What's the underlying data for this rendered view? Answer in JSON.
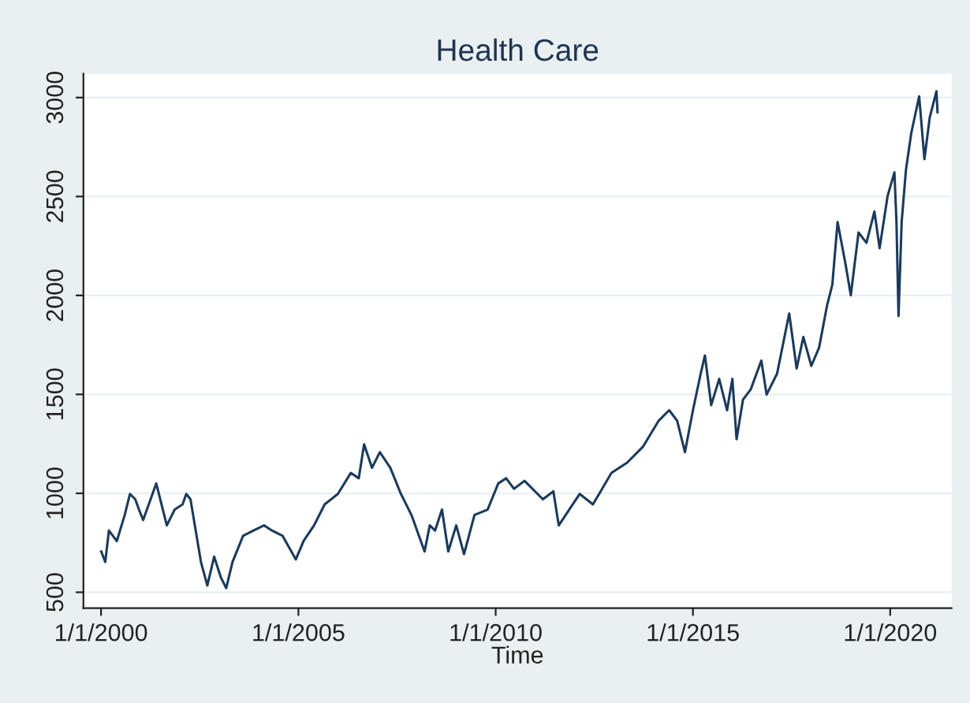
{
  "chart_data": {
    "type": "line",
    "title": "Health Care",
    "xlabel": "Time",
    "x": [
      "2000-01-03",
      "2000-02-09",
      "2000-03-14",
      "2000-05-26",
      "2000-08-07",
      "2000-09-25",
      "2000-11-13",
      "2000-12-17",
      "2001-01-25",
      "2001-05-26",
      "2001-09-01",
      "2001-11-13",
      "2002-01-25",
      "2002-02-28",
      "2002-04-08",
      "2002-07-14",
      "2002-09-11",
      "2002-11-13",
      "2003-01-15",
      "2003-03-05",
      "2003-05-02",
      "2003-08-08",
      "2003-11-13",
      "2004-02-18",
      "2004-05-01",
      "2004-08-08",
      "2004-12-08",
      "2005-02-18",
      "2005-05-26",
      "2005-09-01",
      "2006-01-01",
      "2006-05-01",
      "2006-07-14",
      "2006-09-01",
      "2006-11-13",
      "2007-01-25",
      "2007-05-02",
      "2007-08-08",
      "2007-11-13",
      "2008-03-14",
      "2008-05-01",
      "2008-06-19",
      "2008-08-22",
      "2008-10-19",
      "2009-01-01",
      "2009-03-14",
      "2009-06-19",
      "2009-10-19",
      "2010-01-25",
      "2010-04-08",
      "2010-06-19",
      "2010-09-25",
      "2011-03-14",
      "2011-06-19",
      "2011-08-08",
      "2011-11-13",
      "2012-02-18",
      "2012-06-19",
      "2012-12-08",
      "2013-05-02",
      "2013-09-25",
      "2014-02-18",
      "2014-05-26",
      "2014-08-08",
      "2014-10-19",
      "2015-01-01",
      "2015-03-14",
      "2015-04-22",
      "2015-06-19",
      "2015-09-01",
      "2015-11-13",
      "2016-01-01",
      "2016-02-09",
      "2016-04-08",
      "2016-06-19",
      "2016-09-25",
      "2016-11-13",
      "2017-02-18",
      "2017-06-10",
      "2017-08-18",
      "2017-10-19",
      "2018-01-01",
      "2018-03-14",
      "2018-05-26",
      "2018-07-14",
      "2018-09-01",
      "2018-11-13",
      "2019-01-01",
      "2019-03-14",
      "2019-05-26",
      "2019-08-08",
      "2019-09-25",
      "2019-12-08",
      "2020-02-09",
      "2020-02-28",
      "2020-03-18",
      "2020-04-16",
      "2020-05-26",
      "2020-07-14",
      "2020-09-25",
      "2020-11-13",
      "2021-01-01",
      "2021-03-04",
      "2021-03-14"
    ],
    "series": [
      {
        "color": "#1b3a5c",
        "values": [
          706,
          653,
          812,
          759,
          890,
          997,
          970,
          918,
          865,
          1050,
          838,
          918,
          944,
          997,
          970,
          653,
          534,
          680,
          574,
          521,
          653,
          785,
          812,
          838,
          812,
          785,
          666,
          759,
          838,
          944,
          997,
          1103,
          1076,
          1248,
          1129,
          1208,
          1129,
          997,
          891,
          706,
          838,
          812,
          918,
          706,
          838,
          693,
          891,
          918,
          1050,
          1076,
          1023,
          1063,
          970,
          1010,
          838,
          918,
          997,
          944,
          1103,
          1155,
          1235,
          1367,
          1420,
          1367,
          1208,
          1420,
          1605,
          1697,
          1446,
          1578,
          1420,
          1578,
          1274,
          1473,
          1525,
          1671,
          1499,
          1605,
          1909,
          1631,
          1790,
          1644,
          1737,
          1948,
          2054,
          2371,
          2160,
          2001,
          2318,
          2266,
          2424,
          2239,
          2503,
          2622,
          2371,
          1896,
          2371,
          2636,
          2821,
          3006,
          2689,
          2900,
          3032,
          2926
        ]
      }
    ],
    "xlim": [
      "1999-07-22",
      "2021-07-22"
    ],
    "xticks": [
      {
        "value": "2000-01-01",
        "label": "1/1/2000"
      },
      {
        "value": "2005-01-01",
        "label": "1/1/2005"
      },
      {
        "value": "2010-01-01",
        "label": "1/1/2010"
      },
      {
        "value": "2015-01-01",
        "label": "1/1/2015"
      },
      {
        "value": "2020-01-01",
        "label": "1/1/2020"
      }
    ],
    "ylim": [
      420,
      3120
    ],
    "yticks": [
      500,
      1000,
      1500,
      2000,
      2500,
      3000
    ],
    "grid": "y",
    "legend": false,
    "marker": "none",
    "line_style": "solid"
  }
}
